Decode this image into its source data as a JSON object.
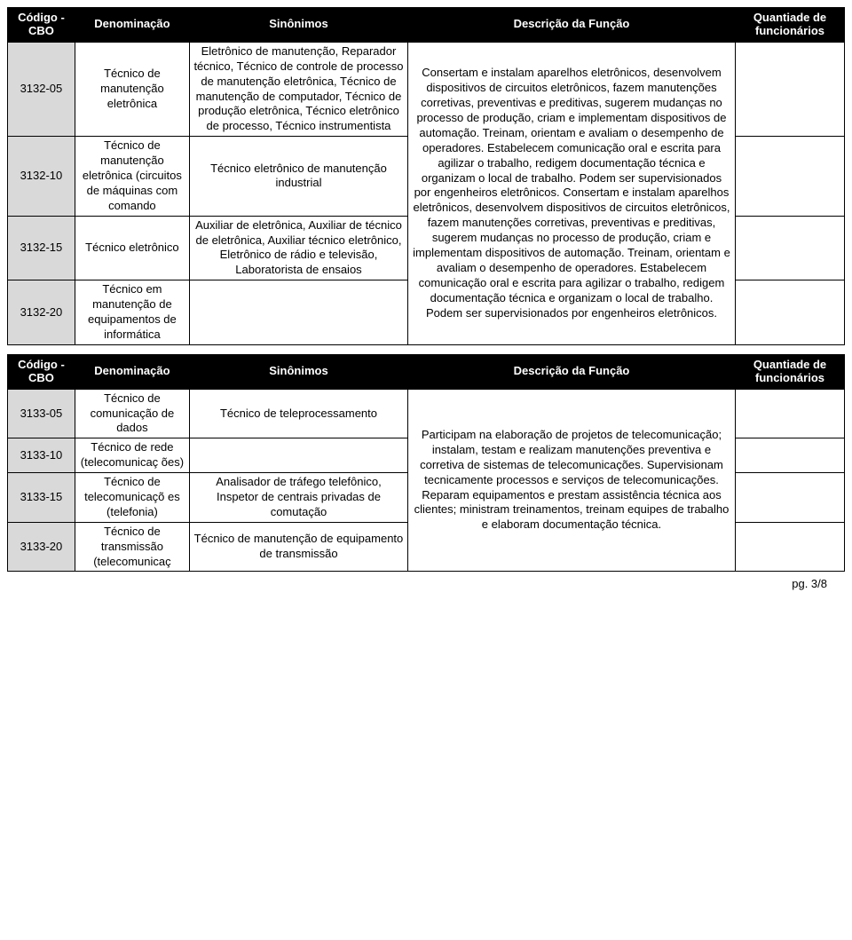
{
  "headers": {
    "code": "Código - CBO",
    "denom": "Denominação",
    "syn": "Sinônimos",
    "desc": "Descrição da Função",
    "qty": "Quantiade de funcionários"
  },
  "table1": {
    "desc": "Consertam e instalam aparelhos eletrônicos, desenvolvem dispositivos de circuitos eletrônicos, fazem manutenções corretivas, preventivas e preditivas, sugerem mudanças no processo de produção, criam e implementam dispositivos de automação. Treinam, orientam e avaliam o desempenho de operadores. Estabelecem comunicação oral e escrita para agilizar o trabalho, redigem documentação técnica e organizam o local de trabalho. Podem ser supervisionados por engenheiros eletrônicos. Consertam e instalam aparelhos eletrônicos, desenvolvem dispositivos de circuitos eletrônicos, fazem manutenções corretivas, preventivas e preditivas, sugerem mudanças no processo de produção, criam e implementam dispositivos de automação. Treinam, orientam e avaliam o desempenho de operadores. Estabelecem comunicação oral e escrita para agilizar o trabalho, redigem documentação técnica e organizam o local de trabalho. Podem ser supervisionados por engenheiros eletrônicos.",
    "rows": [
      {
        "code": "3132-05",
        "denom": "Técnico de manutenção eletrônica",
        "syn": "Eletrônico de manutenção, Reparador técnico, Técnico de controle de processo de manutenção eletrônica, Técnico de manutenção de computador, Técnico de produção eletrônica, Técnico eletrônico de processo, Técnico instrumentista"
      },
      {
        "code": "3132-10",
        "denom": "Técnico de manutenção eletrônica (circuitos de máquinas com comando",
        "syn": "Técnico eletrônico de manutenção industrial"
      },
      {
        "code": "3132-15",
        "denom": "Técnico eletrônico",
        "syn": "Auxiliar de eletrônica, Auxiliar de técnico de eletrônica, Auxiliar técnico eletrônico, Eletrônico de rádio e televisão, Laboratorista de ensaios"
      },
      {
        "code": "3132-20",
        "denom": "Técnico em manutenção de equipamentos de informática",
        "syn": ""
      }
    ]
  },
  "table2": {
    "desc": "Participam na elaboração de projetos de telecomunicação; instalam, testam e realizam manutenções preventiva e corretiva de sistemas de telecomunicações. Supervisionam tecnicamente processos e serviços de telecomunicações. Reparam equipamentos e prestam assistência técnica aos clientes; ministram treinamentos, treinam equipes de trabalho e elaboram documentação técnica.",
    "rows": [
      {
        "code": "3133-05",
        "denom": "Técnico de comunicação de dados",
        "syn": "Técnico de teleprocessamento"
      },
      {
        "code": "3133-10",
        "denom": "Técnico de rede (telecomunicaç ões)",
        "syn": ""
      },
      {
        "code": "3133-15",
        "denom": "Técnico de telecomunicaçõ es (telefonia)",
        "syn": "Analisador de tráfego telefônico, Inspetor de centrais privadas de comutação"
      },
      {
        "code": "3133-20",
        "denom": "Técnico de transmissão (telecomunicaç",
        "syn": "Técnico de manutenção de equipamento de transmissão"
      }
    ]
  },
  "footer": "pg. 3/8"
}
